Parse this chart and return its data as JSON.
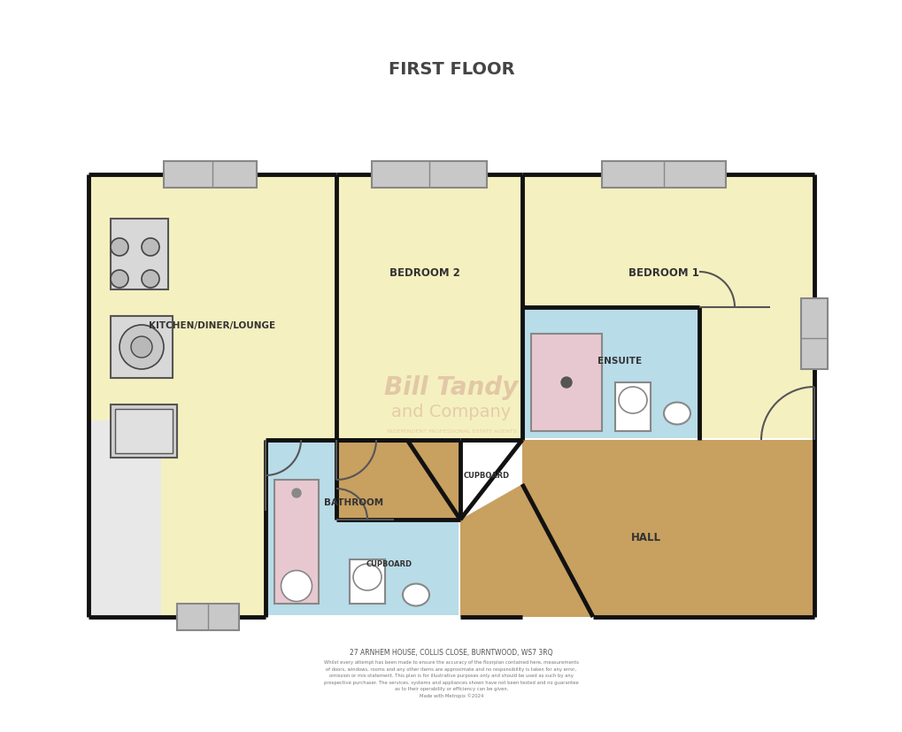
{
  "title": "FIRST FLOOR",
  "address": "27 ARNHEM HOUSE, COLLIS CLOSE, BURNTWOOD, WS7 3RQ",
  "disclaimer": "Whilst every attempt has been made to ensure the accuracy of the floorplan contained here, measurements\nof doors, windows, rooms and any other items are approximate and no responsibility is taken for any error,\nomission or mis-statement. This plan is for illustrative purposes only and should be used as such by any\nprospective purchaser. The services, systems and appliances shown have not been tested and no guarantee\nas to their operability or efficiency can be given.\nMade with Metropix ©2024",
  "bg_color": "#ffffff",
  "wall_color": "#111111",
  "wall_lw": 3.5,
  "colors": {
    "kitchen": "#f5f0c0",
    "bedroom": "#f5f0c0",
    "bathroom": "#b8dce8",
    "ensuite": "#b8dce8",
    "hall": "#c8a060",
    "window": "#c8c8c8",
    "bath_fill": "#e8c8d0",
    "appliance": "#e0e0e0"
  }
}
